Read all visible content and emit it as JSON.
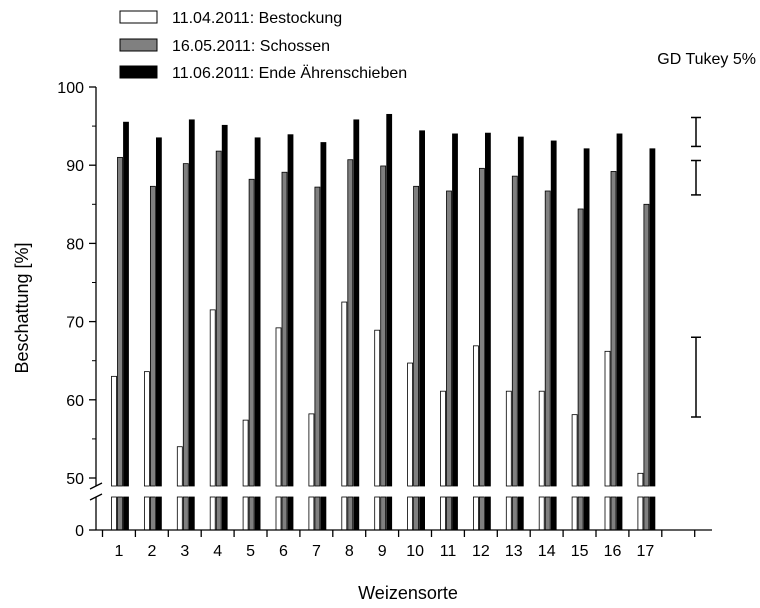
{
  "chart_data": {
    "type": "bar",
    "xlabel": "Weizensorte",
    "ylabel": "Beschattung [%]",
    "categories": [
      "1",
      "2",
      "3",
      "4",
      "5",
      "6",
      "7",
      "8",
      "9",
      "10",
      "11",
      "12",
      "13",
      "14",
      "15",
      "16",
      "17"
    ],
    "y_axis": {
      "upper_segment": [
        50,
        100
      ],
      "lower_segment": [
        0,
        0
      ],
      "ticks_upper": [
        "50",
        "60",
        "70",
        "80",
        "90",
        "100"
      ],
      "tick_lower": "0",
      "break": true
    },
    "legend_position": "top-left",
    "series": [
      {
        "name": "11.04.2011: Bestockung",
        "color": "#ffffff",
        "values": [
          63.0,
          63.6,
          54.0,
          71.5,
          57.4,
          69.2,
          58.2,
          72.5,
          68.9,
          64.7,
          61.1,
          66.9,
          61.1,
          61.1,
          58.1,
          66.2,
          50.6
        ]
      },
      {
        "name": "16.05.2011: Schossen",
        "color": "#808080",
        "values": [
          91.0,
          87.3,
          90.2,
          91.8,
          88.2,
          89.1,
          87.2,
          90.7,
          89.9,
          87.3,
          86.7,
          89.6,
          88.6,
          86.7,
          84.4,
          89.2,
          85.0
        ]
      },
      {
        "name": "11.06.2011: Ende Ährenschieben",
        "color": "#000000",
        "values": [
          95.5,
          93.5,
          95.8,
          95.1,
          93.5,
          93.9,
          92.9,
          95.8,
          96.5,
          94.4,
          94.0,
          94.1,
          93.6,
          93.1,
          92.1,
          94.0,
          92.1
        ]
      }
    ],
    "tukey": {
      "label": "GD Tukey 5%",
      "intervals": [
        {
          "series": "11.06.2011: Ende Ährenschieben",
          "low": 92.4,
          "high": 96.1
        },
        {
          "series": "16.05.2011: Schossen",
          "low": 86.2,
          "high": 90.6
        },
        {
          "series": "11.04.2011: Bestockung",
          "low": 57.8,
          "high": 68.0
        }
      ]
    }
  }
}
